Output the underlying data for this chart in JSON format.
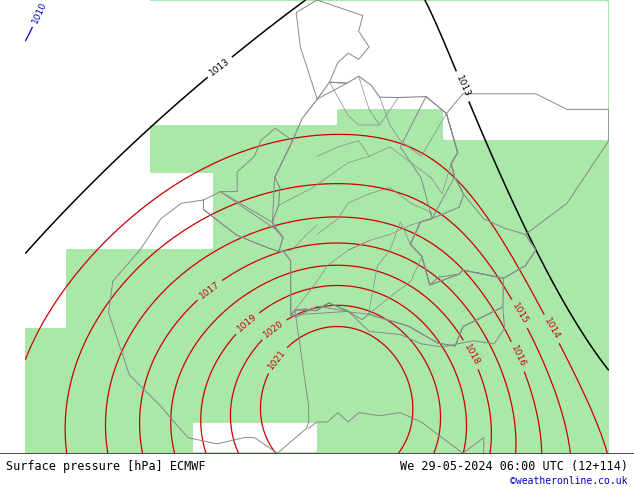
{
  "title_left": "Surface pressure [hPa] ECMWF",
  "title_right": "We 29-05-2024 06:00 UTC (12+114)",
  "credit": "©weatheronline.co.uk",
  "credit_color": "#0000cc",
  "land_color": "#aae8aa",
  "sea_color": "#c8c8c8",
  "fig_width": 6.34,
  "fig_height": 4.9,
  "dpi": 100,
  "bottom_bar_color": "#ffffff",
  "contour_red_color": "#cc0000",
  "contour_blue_color": "#0000cc",
  "contour_black_color": "#000000",
  "border_color": "#888888",
  "label_fontsize": 6.5,
  "title_fontsize": 8.5
}
